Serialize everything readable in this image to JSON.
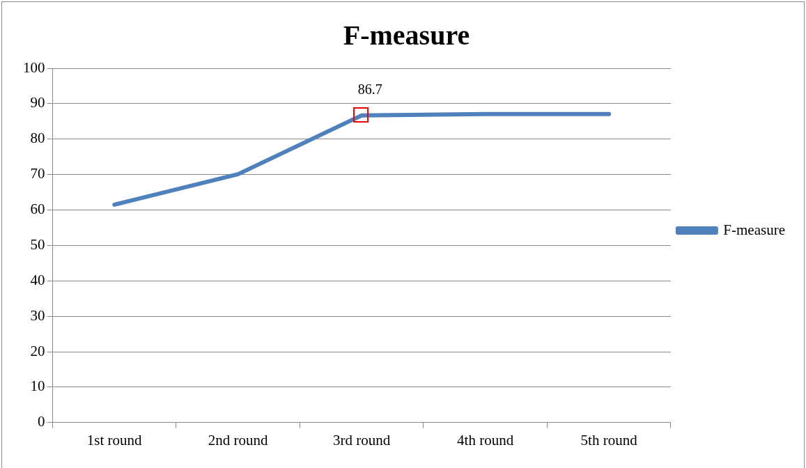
{
  "chart_data": {
    "type": "line",
    "title": "F-measure",
    "categories": [
      "1st round",
      "2nd round",
      "3rd round",
      "4th round",
      "5th round"
    ],
    "series": [
      {
        "name": "F-measure",
        "color": "#4f81bd",
        "values": [
          61.5,
          70.1,
          86.7,
          87.1,
          87.1
        ],
        "value_labels": [
          null,
          null,
          "86.7",
          null,
          null
        ]
      }
    ],
    "ylim": [
      0,
      100
    ],
    "yticks": [
      0,
      10,
      20,
      30,
      40,
      50,
      60,
      70,
      80,
      90,
      100
    ],
    "grid": "y",
    "legend": "right",
    "marker": "none",
    "line_style": "solid"
  }
}
